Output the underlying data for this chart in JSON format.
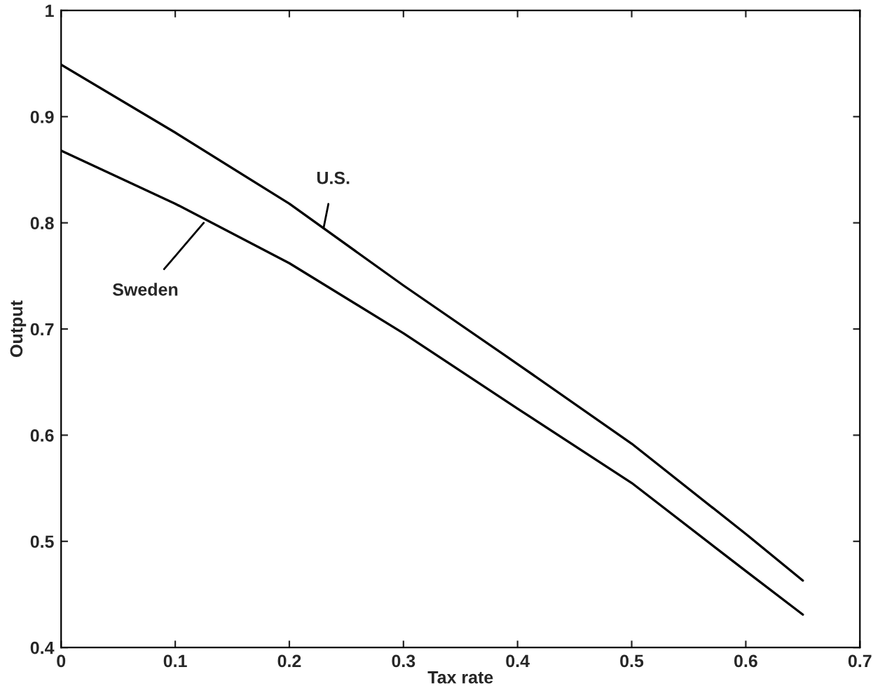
{
  "chart_data": {
    "type": "line",
    "xlabel": "Tax rate",
    "ylabel": "Output",
    "x": [
      0,
      0.1,
      0.2,
      0.3,
      0.4,
      0.5,
      0.6,
      0.65
    ],
    "series": [
      {
        "color": "#000000",
        "values": [
          0.949,
          0.885,
          0.818,
          0.741,
          0.667,
          0.592,
          0.507,
          0.463
        ]
      },
      {
        "color": "#000000",
        "values": [
          0.868,
          0.818,
          0.762,
          0.696,
          0.625,
          0.555,
          0.472,
          0.431
        ]
      }
    ],
    "annotations": [
      {
        "text": "U.S.",
        "x": 0.23,
        "y": 0.795
      },
      {
        "text": "Sweden",
        "x": 0.125,
        "y": 0.8
      }
    ],
    "xlim": [
      0,
      0.7
    ],
    "xticks": [
      0,
      0.1,
      0.2,
      0.3,
      0.4,
      0.5,
      0.6,
      0.7
    ],
    "ylim": [
      0.4,
      1
    ],
    "yticks": [
      0.4,
      0.5,
      0.6,
      0.7,
      0.8,
      0.9,
      1
    ],
    "grid": false,
    "legend": false,
    "marker": "none",
    "line_style": "solid"
  }
}
